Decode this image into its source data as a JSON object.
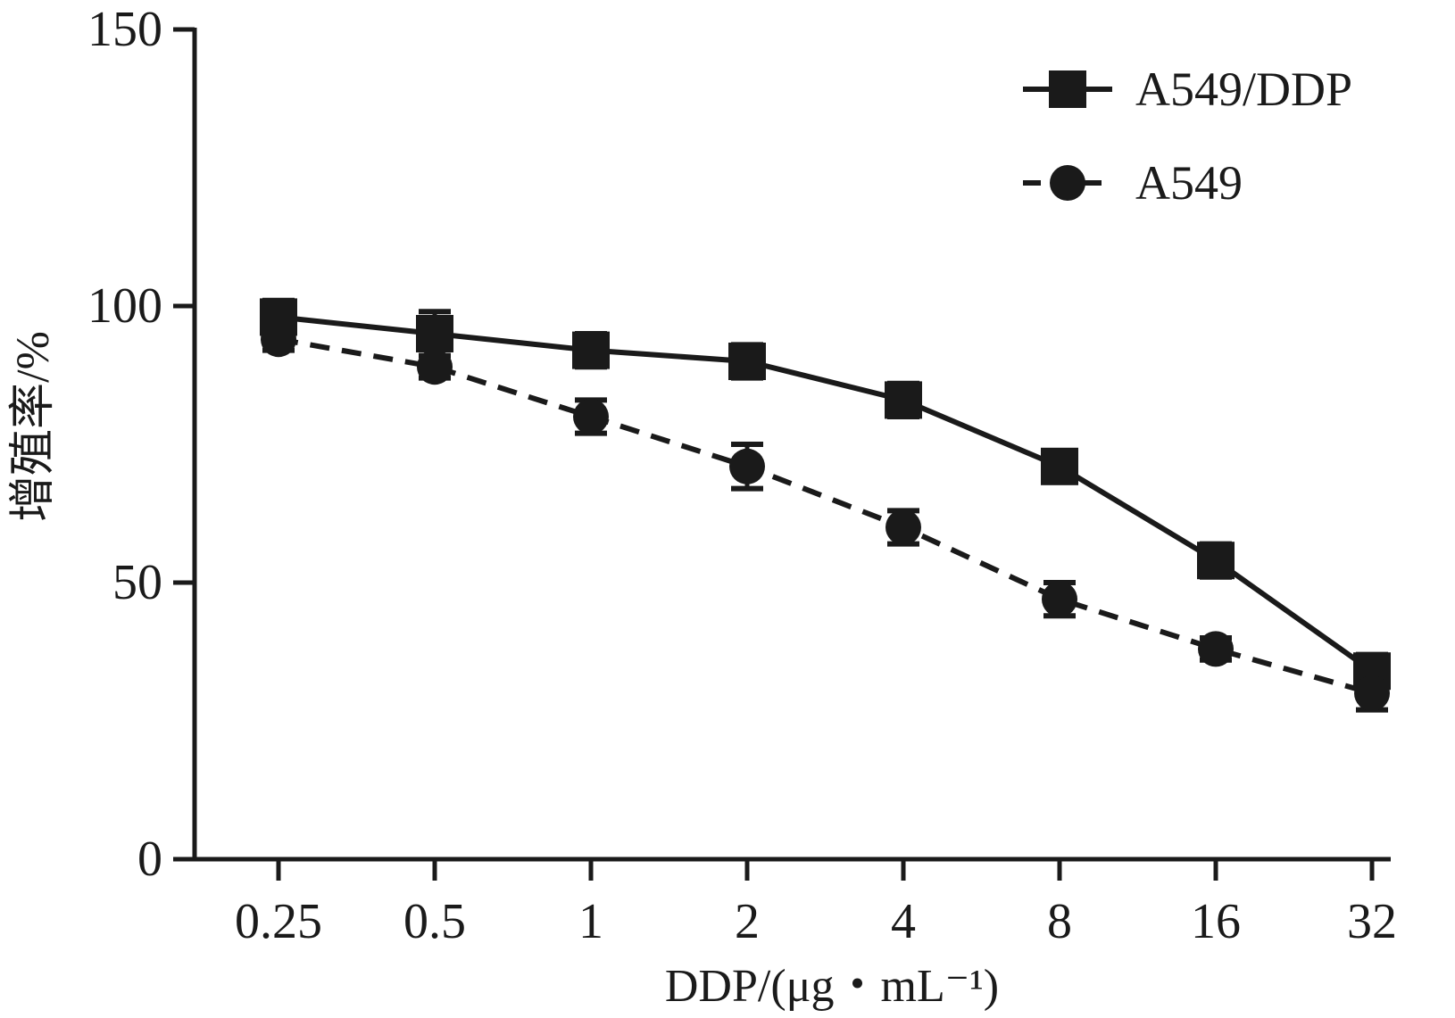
{
  "chart_data": {
    "type": "line",
    "xlabel": "DDP/(μg・mL⁻¹)",
    "ylabel": "增殖率/%",
    "categories": [
      "0.25",
      "0.5",
      "1",
      "2",
      "4",
      "8",
      "16",
      "32"
    ],
    "ylim": [
      0,
      150
    ],
    "yticks": [
      0,
      50,
      100,
      150
    ],
    "grid": false,
    "legend_position": "top-right",
    "series": [
      {
        "name": "A549/DDP",
        "marker": "square",
        "line_style": "solid",
        "color": "#1a1a1a",
        "values": [
          98,
          95,
          92,
          90,
          83,
          71,
          54,
          34
        ],
        "errors": [
          3,
          4,
          3,
          3,
          3,
          2,
          3,
          3
        ]
      },
      {
        "name": "A549",
        "marker": "circle",
        "line_style": "dashed",
        "color": "#1a1a1a",
        "values": [
          94,
          89,
          80,
          71,
          60,
          47,
          38,
          30
        ],
        "errors": [
          2,
          2,
          3,
          4,
          3,
          3,
          2,
          3
        ]
      }
    ]
  }
}
